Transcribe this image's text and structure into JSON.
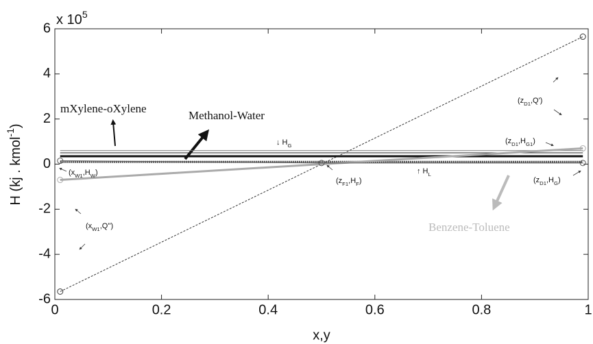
{
  "chart_data": {
    "type": "line",
    "multiplier": [
      "x 10",
      "5"
    ],
    "ylabel": [
      "H (kj . kmol",
      "-1",
      ")"
    ],
    "xlabel": "x,y",
    "xlim": [
      0,
      1
    ],
    "ylim": [
      -6,
      6
    ],
    "xticks": [
      0,
      0.2,
      0.4,
      0.6,
      0.8,
      1
    ],
    "yticks": [
      -6,
      -4,
      -2,
      0,
      2,
      4,
      6
    ],
    "grid": false,
    "series": [
      {
        "x": [
          0.01,
          0.99
        ],
        "values": [
          -5.65,
          5.65
        ],
        "color": "#333333",
        "style": "dotted",
        "weight": "thin",
        "marker": "circle"
      },
      {
        "x": [
          0.01,
          0.99
        ],
        "values": [
          0.6,
          0.6
        ],
        "color": "#777777",
        "style": "solid",
        "weight": "thin"
      },
      {
        "x": [
          0.01,
          0.99
        ],
        "values": [
          0.5,
          0.5
        ],
        "color": "#222222",
        "style": "solid",
        "weight": "thin"
      },
      {
        "x": [
          0.01,
          0.99
        ],
        "values": [
          0.35,
          0.35
        ],
        "color": "#111111",
        "style": "solid",
        "weight": "thick"
      },
      {
        "x": [
          0.01,
          0.99
        ],
        "values": [
          0.1,
          0.1
        ],
        "color": "#444444",
        "style": "dotted",
        "weight": "thick"
      },
      {
        "x": [
          0.01,
          0.99
        ],
        "values": [
          -0.7,
          0.7
        ],
        "color": "#aaaaaa",
        "style": "solid",
        "weight": "thick",
        "marker": "circle"
      },
      {
        "x": [
          0.01,
          0.5,
          0.99
        ],
        "values": [
          0.15,
          0.05,
          0.05
        ],
        "color": "#555555",
        "style": "solid",
        "weight": "thin",
        "marker": "circle"
      }
    ],
    "annotations": [
      {
        "parts": [
          "mXylene-oXylene"
        ]
      },
      {
        "parts": [
          "Methanol-Water"
        ]
      },
      {
        "parts": [
          "Benzene-Toluene"
        ]
      },
      {
        "parts": [
          "↓ H",
          "G"
        ]
      },
      {
        "parts": [
          "(z",
          "D1",
          ",H",
          "G1",
          ")"
        ]
      },
      {
        "parts": [
          "(z",
          "D1",
          ",Q')"
        ]
      },
      {
        "parts": [
          "(x",
          "W1",
          ",H",
          "W",
          ")"
        ]
      },
      {
        "parts": [
          "(z",
          "F1",
          ",H",
          "F",
          ")"
        ]
      },
      {
        "parts": [
          "↑ H",
          "L"
        ]
      },
      {
        "parts": [
          "(z",
          "D1",
          ",H",
          "G",
          ")"
        ]
      },
      {
        "parts": [
          "(x",
          "W1",
          ",Q'')"
        ]
      }
    ]
  }
}
